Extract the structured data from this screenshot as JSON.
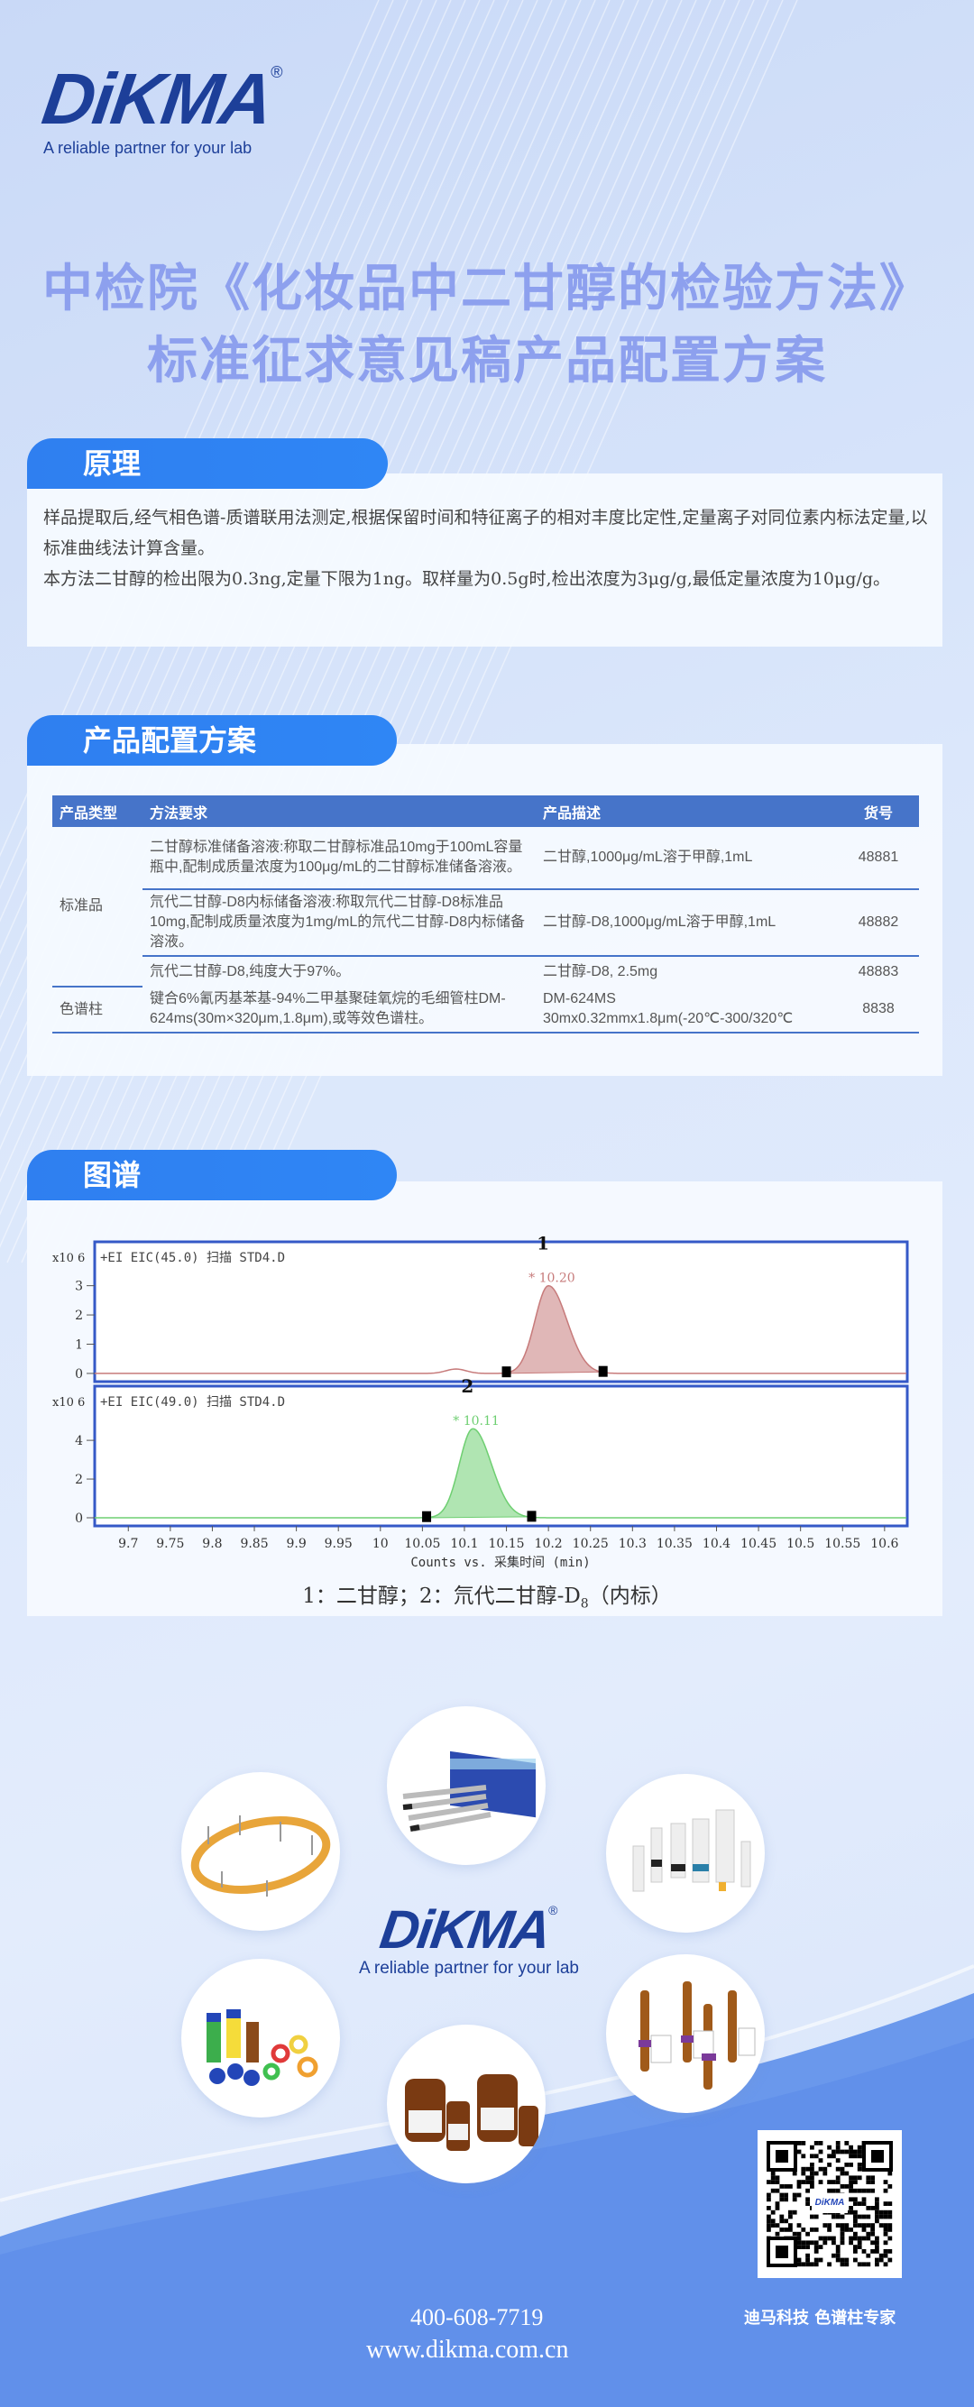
{
  "brand": {
    "name": "DiKMA",
    "registered": "®",
    "tagline": "A reliable partner for your lab"
  },
  "title": {
    "line1": "中检院《化妆品中二甘醇的检验方法》",
    "line2": "标准征求意见稿产品配置方案"
  },
  "colors": {
    "accent": "#2f7ff0",
    "table_header": "#4674c9",
    "title": "#8da0ee",
    "brand": "#1d3f99",
    "trace1": "#c77b7b",
    "trace2": "#6fcf72"
  },
  "principle": {
    "heading": "原理",
    "paragraphs": [
      "样品提取后,经气相色谱-质谱联用法测定,根据保留时间和特征离子的相对丰度比定性,定量离子对同位素内标法定量,以标准曲线法计算含量。",
      "本方法二甘醇的检出限为0.3ng,定量下限为1ng。取样量为0.5g时,检出浓度为3μg/g,最低定量浓度为10μg/g。"
    ]
  },
  "products": {
    "heading": "产品配置方案",
    "columns": [
      "产品类型",
      "方法要求",
      "产品描述",
      "货号"
    ],
    "groups": [
      {
        "type": "标准品",
        "rows": [
          {
            "method": "二甘醇标准储备溶液:称取二甘醇标准品10mg于100mL容量瓶中,配制成质量浓度为100μg/mL的二甘醇标准储备溶液。",
            "desc": "二甘醇,1000μg/mL溶于甲醇,1mL",
            "code": "48881"
          },
          {
            "method": "氘代二甘醇-D8内标储备溶液:称取氘代二甘醇-D8标准品10mg,配制成质量浓度为1mg/mL的氘代二甘醇-D8内标储备溶液。",
            "desc": "二甘醇-D8,1000μg/mL溶于甲醇,1mL",
            "code": "48882"
          },
          {
            "method": "氘代二甘醇-D8,纯度大于97%。",
            "desc": "二甘醇-D8, 2.5mg",
            "code": "48883"
          }
        ]
      },
      {
        "type": "色谱柱",
        "rows": [
          {
            "method": "键合6%氰丙基苯基-94%二甲基聚硅氧烷的毛细管柱DM-624ms(30m×320μm,1.8μm),或等效色谱柱。",
            "desc": "DM-624MS  30mx0.32mmx1.8μm(-20℃-300/320℃",
            "code": "8838"
          }
        ]
      }
    ]
  },
  "spectrum": {
    "heading": "图谱",
    "caption": "1：二甘醇；2：氘代二甘醇-D",
    "caption_sub": "8",
    "caption_tail": "（内标）"
  },
  "chart_data": [
    {
      "type": "line",
      "title": "+EI EIC(45.0) 扫描 STD4.D",
      "y_multiplier": "x10 6",
      "peak_label": "1",
      "retention_label": "* 10.20",
      "xlim": [
        9.66,
        10.627
      ],
      "ylim": [
        -0.28,
        4.5
      ],
      "yticks": [
        0,
        1,
        2,
        3
      ],
      "peaks": [
        {
          "rt": 10.2,
          "height": 3.0,
          "start": 10.15,
          "end": 10.265
        }
      ],
      "minor_peaks": [
        {
          "rt": 10.09,
          "height": 0.15
        }
      ],
      "color": "#c77b7b"
    },
    {
      "type": "line",
      "title": "+EI EIC(49.0) 扫描 STD4.D",
      "y_multiplier": "x10 6",
      "peak_label": "2",
      "retention_label": "* 10.11",
      "xlim": [
        9.66,
        10.627
      ],
      "ylim": [
        -0.42,
        6.8
      ],
      "yticks": [
        0,
        2,
        4
      ],
      "peaks": [
        {
          "rt": 10.11,
          "height": 4.6,
          "start": 10.055,
          "end": 10.18
        }
      ],
      "color": "#6fcf72"
    }
  ],
  "chart_axis": {
    "xticks": [
      "9.7",
      "9.75",
      "9.8",
      "9.85",
      "9.9",
      "9.95",
      "10",
      "10.05",
      "10.1",
      "10.15",
      "10.2",
      "10.25",
      "10.3",
      "10.35",
      "10.4",
      "10.45",
      "10.5",
      "10.55",
      "10.6"
    ],
    "xlabel": "Counts vs. 采集时间 (min)"
  },
  "product_images": [
    "gc-column",
    "hplc-columns",
    "spe-cartridges",
    "vials-and-septa",
    "solvent-bottles",
    "ampoule-standards"
  ],
  "footer": {
    "phone": "400-608-7719",
    "website": "www.dikma.com.cn",
    "slogan": "迪马科技 色谱柱专家",
    "qr_label": "DiKMA"
  }
}
